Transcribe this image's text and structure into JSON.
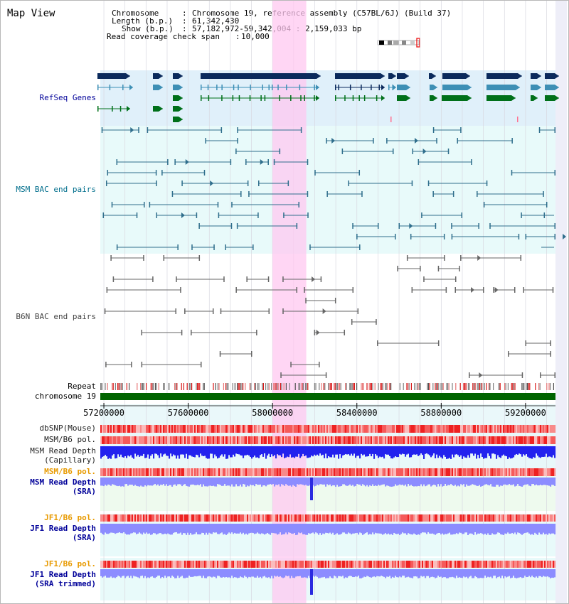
{
  "page": {
    "title": "Map View"
  },
  "header": {
    "chromosome_label": "Chromosome",
    "chromosome_value": "Chromosome 19, reference assembly (C57BL/6J) (Build 37)",
    "length_label": "Length (b.p.)",
    "length_value": "61,342,430",
    "show_label": "Show (b.p.)",
    "show_value": "57,182,972-59,342,004 : 2,159,033 bp",
    "coverage_label": "Read coverage check span",
    "coverage_value": "10,000",
    "separator": ":"
  },
  "tracks": {
    "refseq": "RefSeq Genes",
    "msm_bac": "MSM BAC end pairs",
    "b6n_bac": "B6N BAC end pairs",
    "repeat": "Repeat",
    "chromosome": "chromosome 19",
    "dbsnp": "dbSNP(Mouse)",
    "msm_b6_pol_1": "MSM/B6 pol.",
    "msm_depth_cap_1": "MSM Read Depth",
    "msm_depth_cap_2": "(Capillary)",
    "msm_b6_pol_2": "MSM/B6 pol.",
    "msm_depth_sra_1": "MSM Read Depth",
    "msm_depth_sra_2": "(SRA)",
    "jf1_b6_pol_1": "JF1/B6 pol.",
    "jf1_depth_sra_1": "JF1 Read Depth",
    "jf1_depth_sra_2": "(SRA)",
    "jf1_b6_pol_2": "JF1/B6 pol.",
    "jf1_depth_trim_1": "JF1 Read Depth",
    "jf1_depth_trim_2": "(SRA trimmed)"
  },
  "axis": {
    "ticks": [
      "57200000",
      "57600000",
      "58000000",
      "58400000",
      "58800000",
      "59200000"
    ],
    "tick_values": [
      57200000,
      57600000,
      58000000,
      58400000,
      58800000,
      59200000
    ],
    "start": 57182972,
    "end": 59342004,
    "highlight_start": 58000000,
    "highlight_end": 58160000
  },
  "colors": {
    "refseq_dark": "#0b2a5c",
    "refseq_mid": "#3d8fb5",
    "refseq_green": "#00701a",
    "msm_bac": "#2f6e8c",
    "b6n_bac": "#666666",
    "chromosome": "#006400",
    "highlight": "#ffc8f0",
    "label_blue": "#000099",
    "label_orange": "#e89a00",
    "label_teal": "#006e8c",
    "depth_blue": "#0000dd",
    "depth_light": "#8c8cff"
  }
}
